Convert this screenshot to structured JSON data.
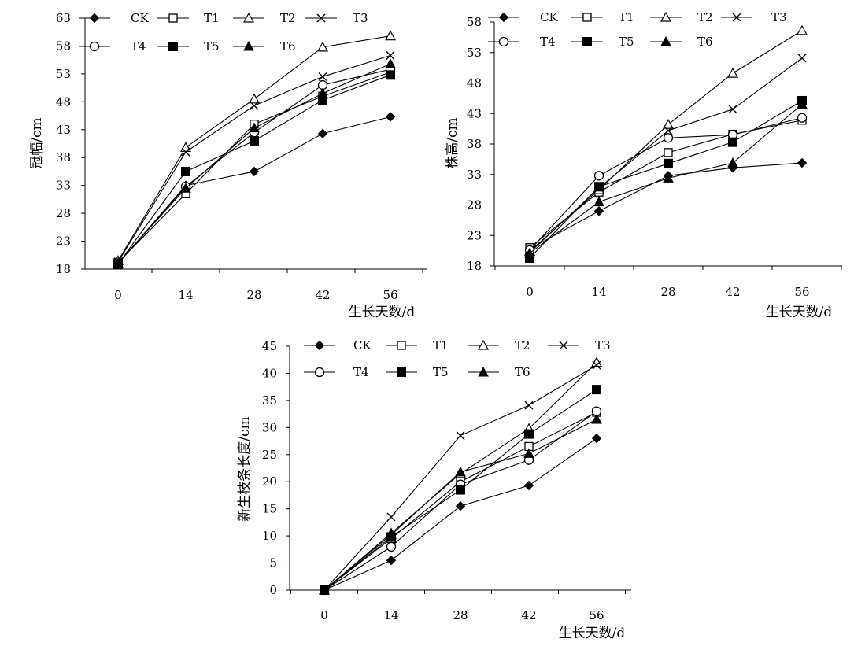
{
  "chart_data": [
    {
      "type": "line",
      "xlabel": "生长天数/d",
      "ylabel": "冠幅/cm",
      "x": [
        0,
        14,
        28,
        42,
        56
      ],
      "x_tick_labels": [
        "0",
        "14",
        "28",
        "42",
        "56"
      ],
      "ylim": [
        18,
        63
      ],
      "y_ticks": [
        18,
        23,
        28,
        33,
        38,
        43,
        48,
        53,
        58,
        63
      ],
      "y_tick_labels": [
        "18",
        "23",
        "28",
        "33",
        "38",
        "43",
        "48",
        "53",
        "58",
        "63"
      ],
      "grid": false,
      "legend_position": "top",
      "series": [
        {
          "name": "CK",
          "marker": "diamond-filled",
          "values": [
            19.0,
            33.0,
            35.5,
            42.3,
            45.3
          ]
        },
        {
          "name": "T1",
          "marker": "square-open",
          "values": [
            19.2,
            31.5,
            44.0,
            49.0,
            53.3
          ]
        },
        {
          "name": "T2",
          "marker": "triangle-open",
          "values": [
            19.5,
            39.8,
            48.5,
            57.8,
            59.8
          ]
        },
        {
          "name": "T3",
          "marker": "x",
          "values": [
            19.3,
            39.0,
            47.3,
            52.5,
            56.3
          ]
        },
        {
          "name": "T4",
          "marker": "circle-open",
          "values": [
            19.0,
            32.8,
            42.5,
            51.0,
            53.8
          ]
        },
        {
          "name": "T5",
          "marker": "square-filled",
          "values": [
            18.9,
            35.5,
            41.0,
            48.3,
            52.8
          ]
        },
        {
          "name": "T6",
          "marker": "triangle-filled",
          "values": [
            19.1,
            32.5,
            43.3,
            49.5,
            54.8
          ]
        }
      ]
    },
    {
      "type": "line",
      "xlabel": "生长天数/d",
      "ylabel": "株高/cm",
      "x": [
        0,
        14,
        28,
        42,
        56
      ],
      "x_tick_labels": [
        "0",
        "14",
        "28",
        "42",
        "56"
      ],
      "ylim": [
        18,
        58
      ],
      "y_ticks": [
        18,
        23,
        28,
        33,
        38,
        43,
        48,
        53,
        58
      ],
      "y_tick_labels": [
        "18",
        "23",
        "28",
        "33",
        "38",
        "43",
        "48",
        "53",
        "58"
      ],
      "grid": false,
      "legend_position": "top",
      "series": [
        {
          "name": "CK",
          "marker": "diamond-filled",
          "values": [
            20.8,
            27.0,
            32.8,
            34.1,
            34.9
          ]
        },
        {
          "name": "T1",
          "marker": "square-open",
          "values": [
            21.0,
            30.1,
            36.6,
            39.6,
            41.9
          ]
        },
        {
          "name": "T2",
          "marker": "triangle-open",
          "values": [
            20.4,
            30.5,
            41.2,
            49.6,
            56.6
          ]
        },
        {
          "name": "T3",
          "marker": "x",
          "values": [
            20.2,
            30.8,
            40.2,
            43.7,
            52.1
          ]
        },
        {
          "name": "T4",
          "marker": "circle-open",
          "values": [
            20.6,
            32.8,
            39.0,
            39.5,
            42.3
          ]
        },
        {
          "name": "T5",
          "marker": "square-filled",
          "values": [
            19.3,
            31.0,
            34.8,
            38.3,
            45.1
          ]
        },
        {
          "name": "T6",
          "marker": "triangle-filled",
          "values": [
            20.1,
            28.5,
            32.4,
            34.9,
            44.5
          ]
        }
      ]
    },
    {
      "type": "line",
      "xlabel": "生长天数/d",
      "ylabel": "新生枝条长度/cm",
      "x": [
        0,
        14,
        28,
        42,
        56
      ],
      "x_tick_labels": [
        "0",
        "14",
        "28",
        "42",
        "56"
      ],
      "ylim": [
        0,
        45
      ],
      "y_ticks": [
        0,
        5,
        10,
        15,
        20,
        25,
        30,
        35,
        40,
        45
      ],
      "y_tick_labels": [
        "0",
        "5",
        "10",
        "15",
        "20",
        "25",
        "30",
        "35",
        "40",
        "45"
      ],
      "grid": false,
      "legend_position": "top",
      "series": [
        {
          "name": "CK",
          "marker": "diamond-filled",
          "values": [
            0,
            5.5,
            15.5,
            19.3,
            28.0
          ]
        },
        {
          "name": "T1",
          "marker": "square-open",
          "values": [
            0,
            9.5,
            20.0,
            26.5,
            32.8
          ]
        },
        {
          "name": "T2",
          "marker": "triangle-open",
          "values": [
            0,
            10.5,
            21.5,
            29.8,
            42.0
          ]
        },
        {
          "name": "T3",
          "marker": "x",
          "values": [
            0,
            13.5,
            28.5,
            34.1,
            41.5
          ]
        },
        {
          "name": "T4",
          "marker": "circle-open",
          "values": [
            0,
            8.0,
            19.5,
            24.0,
            33.0
          ]
        },
        {
          "name": "T5",
          "marker": "square-filled",
          "values": [
            0,
            9.8,
            18.5,
            28.8,
            37.0
          ]
        },
        {
          "name": "T6",
          "marker": "triangle-filled",
          "values": [
            0,
            10.2,
            21.8,
            25.2,
            31.5
          ]
        }
      ]
    }
  ]
}
